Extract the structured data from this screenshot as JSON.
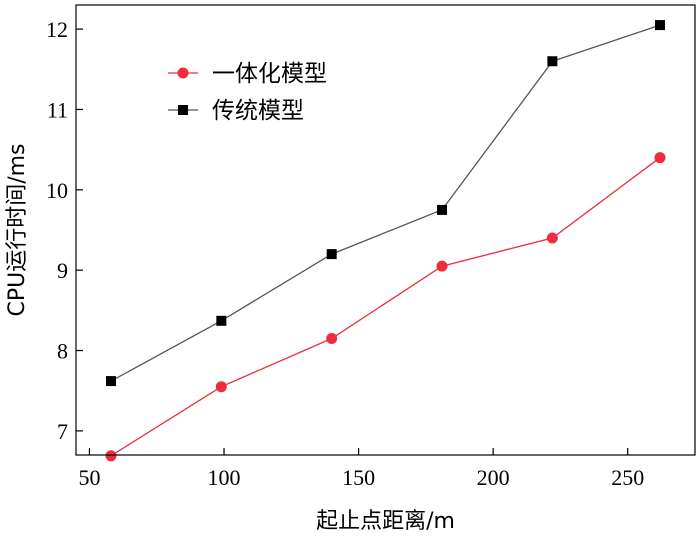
{
  "chart_data": {
    "type": "line",
    "xlabel": "起止点距离/m",
    "ylabel": "CPU运行时间/ms",
    "xlim": [
      45,
      275
    ],
    "ylim": [
      6.7,
      12.3
    ],
    "xticks": [
      50,
      100,
      150,
      200,
      250
    ],
    "yticks": [
      7,
      8,
      9,
      10,
      11,
      12
    ],
    "x": [
      58,
      99,
      140,
      181,
      222,
      262
    ],
    "series": [
      {
        "name": "一体化模型",
        "color": "#ee2c3c",
        "marker": "circle",
        "values": [
          6.69,
          7.55,
          8.15,
          9.05,
          9.4,
          10.4
        ]
      },
      {
        "name": "传统模型",
        "color": "#555555",
        "marker_color": "#000000",
        "marker": "square",
        "values": [
          7.62,
          8.37,
          9.2,
          9.75,
          11.6,
          12.05
        ]
      }
    ],
    "legend_position": "top-left",
    "grid": false
  }
}
